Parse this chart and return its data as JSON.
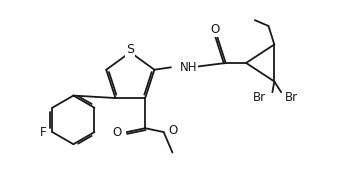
{
  "bg_color": "#ffffff",
  "line_color": "#1a1a1a",
  "line_width": 1.3,
  "font_size": 8.5,
  "xlim": [
    -1.8,
    5.0
  ],
  "ylim": [
    -2.0,
    2.0
  ],
  "figsize": [
    3.56,
    1.96
  ]
}
